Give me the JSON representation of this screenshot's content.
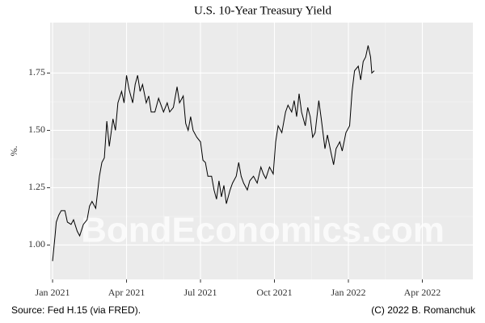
{
  "chart_data": {
    "type": "line",
    "title": "U.S. 10-Year Treasury Yield",
    "y_label": "%.",
    "source": "Source: Fed H.15 (via FRED).",
    "credit": "(C) 2022 B. Romanchuk",
    "watermark": "BondEconomics.com",
    "x": [
      0.0,
      0.1,
      0.15,
      0.25,
      0.35,
      0.5,
      0.6,
      0.75,
      0.85,
      1.0,
      1.1,
      1.25,
      1.4,
      1.5,
      1.6,
      1.75,
      1.9,
      2.0,
      2.1,
      2.2,
      2.3,
      2.45,
      2.55,
      2.65,
      2.8,
      2.9,
      3.0,
      3.1,
      3.25,
      3.35,
      3.45,
      3.55,
      3.65,
      3.8,
      3.9,
      4.0,
      4.15,
      4.3,
      4.4,
      4.5,
      4.65,
      4.75,
      4.9,
      5.05,
      5.15,
      5.3,
      5.4,
      5.5,
      5.6,
      5.7,
      5.85,
      6.0,
      6.1,
      6.2,
      6.3,
      6.45,
      6.55,
      6.65,
      6.75,
      6.85,
      6.95,
      7.05,
      7.2,
      7.3,
      7.45,
      7.55,
      7.65,
      7.75,
      7.9,
      8.0,
      8.15,
      8.3,
      8.45,
      8.55,
      8.65,
      8.8,
      8.95,
      9.05,
      9.15,
      9.3,
      9.45,
      9.55,
      9.7,
      9.8,
      9.9,
      10.0,
      10.1,
      10.25,
      10.35,
      10.45,
      10.55,
      10.65,
      10.8,
      10.9,
      11.05,
      11.15,
      11.3,
      11.4,
      11.5,
      11.65,
      11.75,
      11.9,
      12.05,
      12.15,
      12.25,
      12.4,
      12.5,
      12.6,
      12.7,
      12.8,
      12.9,
      12.95,
      13.05
    ],
    "series": [
      {
        "color": "#000000",
        "values": [
          0.93,
          1.04,
          1.1,
          1.13,
          1.15,
          1.15,
          1.1,
          1.09,
          1.11,
          1.06,
          1.04,
          1.09,
          1.11,
          1.17,
          1.19,
          1.16,
          1.3,
          1.36,
          1.38,
          1.54,
          1.43,
          1.55,
          1.5,
          1.62,
          1.67,
          1.62,
          1.74,
          1.68,
          1.62,
          1.7,
          1.74,
          1.67,
          1.7,
          1.62,
          1.65,
          1.58,
          1.58,
          1.64,
          1.61,
          1.58,
          1.62,
          1.58,
          1.6,
          1.69,
          1.62,
          1.65,
          1.53,
          1.5,
          1.56,
          1.5,
          1.47,
          1.45,
          1.37,
          1.36,
          1.3,
          1.3,
          1.24,
          1.2,
          1.28,
          1.21,
          1.26,
          1.18,
          1.24,
          1.27,
          1.3,
          1.36,
          1.3,
          1.27,
          1.24,
          1.28,
          1.3,
          1.27,
          1.34,
          1.31,
          1.29,
          1.34,
          1.31,
          1.45,
          1.52,
          1.49,
          1.58,
          1.61,
          1.58,
          1.63,
          1.56,
          1.66,
          1.58,
          1.52,
          1.6,
          1.56,
          1.47,
          1.49,
          1.63,
          1.55,
          1.42,
          1.48,
          1.4,
          1.35,
          1.42,
          1.45,
          1.41,
          1.49,
          1.52,
          1.67,
          1.76,
          1.78,
          1.72,
          1.8,
          1.82,
          1.87,
          1.82,
          1.75,
          1.76
        ]
      }
    ],
    "xlim": [
      -0.1,
      17.05
    ],
    "xticks": [
      {
        "value": 0,
        "label": "Jan 2021"
      },
      {
        "value": 3,
        "label": "Apr 2021"
      },
      {
        "value": 6,
        "label": "Jul 2021"
      },
      {
        "value": 9,
        "label": "Oct 2021"
      },
      {
        "value": 12,
        "label": "Jan 2022"
      },
      {
        "value": 15,
        "label": "Apr 2022"
      }
    ],
    "ylim": [
      0.85,
      1.97
    ],
    "yticks": [
      {
        "value": 1.0,
        "label": "1.00"
      },
      {
        "value": 1.25,
        "label": "1.25"
      },
      {
        "value": 1.5,
        "label": "1.50"
      },
      {
        "value": 1.75,
        "label": "1.75"
      }
    ],
    "grid": true,
    "panel_color": "#ebebeb"
  }
}
